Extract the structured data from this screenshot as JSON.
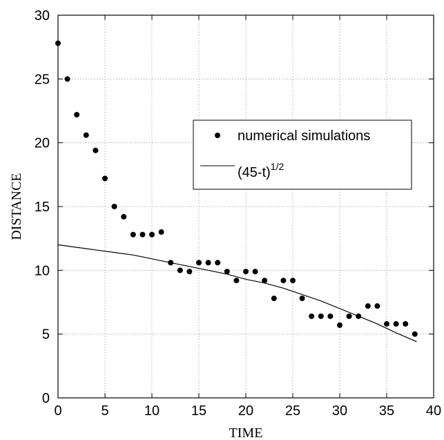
{
  "chart_data": {
    "type": "scatter",
    "xlabel": "TIME",
    "ylabel": "DISTANCE",
    "xlim": [
      0,
      40
    ],
    "ylim": [
      0,
      30
    ],
    "xticks": [
      0,
      5,
      10,
      15,
      20,
      25,
      30,
      35,
      40
    ],
    "yticks": [
      0,
      5,
      10,
      15,
      20,
      25,
      30
    ],
    "grid": true,
    "legend_position": "right-middle",
    "series": [
      {
        "name": "numerical simulations",
        "kind": "points",
        "color": "#000000",
        "x": [
          0,
          1,
          2,
          3,
          4,
          5,
          6,
          7,
          8,
          9,
          10,
          11,
          12,
          13,
          14,
          15,
          16,
          17,
          18,
          19,
          20,
          21,
          22,
          23,
          24,
          25,
          26,
          27,
          28,
          29,
          30,
          31,
          32,
          33,
          34,
          35,
          36,
          37,
          38
        ],
        "y": [
          27.8,
          25.0,
          22.2,
          20.6,
          19.4,
          17.2,
          15.0,
          14.2,
          12.8,
          12.8,
          12.8,
          13.0,
          10.6,
          10.0,
          9.9,
          10.6,
          10.6,
          10.6,
          9.9,
          9.2,
          9.9,
          9.9,
          9.2,
          7.8,
          9.2,
          9.2,
          7.8,
          6.4,
          6.4,
          6.4,
          5.7,
          6.4,
          6.4,
          7.2,
          7.2,
          5.8,
          5.8,
          5.8,
          5.0
        ]
      },
      {
        "name": "(45-t)",
        "name_superscript": "1/2",
        "kind": "line",
        "color": "#000000",
        "x": [
          0,
          2,
          4,
          6,
          8,
          10,
          12,
          14,
          16,
          18,
          20,
          22,
          24,
          26,
          28,
          30,
          32,
          34,
          36,
          38.2
        ],
        "y": [
          12.0,
          11.8,
          11.6,
          11.4,
          11.2,
          10.9,
          10.6,
          10.3,
          10.0,
          9.7,
          9.3,
          9.0,
          8.6,
          8.1,
          7.6,
          7.0,
          6.4,
          5.8,
          5.1,
          4.4
        ]
      }
    ]
  }
}
